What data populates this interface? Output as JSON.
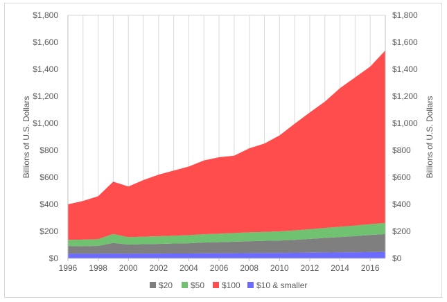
{
  "chart_data": {
    "type": "area",
    "stacked": true,
    "title": "",
    "ylabel_left": "Billions of U.S. Dollars",
    "ylabel_right": "Billions of U.S. Dollars",
    "ylim": [
      0,
      1800
    ],
    "y_ticks": [
      0,
      200,
      400,
      600,
      800,
      1000,
      1200,
      1400,
      1600,
      1800
    ],
    "y_tick_labels": [
      "$0",
      "$200",
      "$400",
      "$600",
      "$800",
      "$1,000",
      "$1,200",
      "$1,400",
      "$1,600",
      "$1,800"
    ],
    "xlim": [
      1996,
      2017
    ],
    "x_ticks": [
      1996,
      1998,
      2000,
      2002,
      2004,
      2006,
      2008,
      2010,
      2012,
      2014,
      2016
    ],
    "x_tick_labels": [
      "1996",
      "1998",
      "2000",
      "2002",
      "2004",
      "2006",
      "2008",
      "2010",
      "2012",
      "2014",
      "2016"
    ],
    "grid": "vertical",
    "legend_position": "bottom",
    "x": [
      1996,
      1997,
      1998,
      1999,
      2000,
      2001,
      2002,
      2003,
      2004,
      2005,
      2006,
      2007,
      2008,
      2009,
      2010,
      2011,
      2012,
      2013,
      2014,
      2015,
      2016,
      2017
    ],
    "series": [
      {
        "name": "$10 & smaller",
        "color": "#6b6bff",
        "values": [
          34,
          34,
          34,
          35,
          34,
          35,
          35,
          36,
          36,
          37,
          38,
          38,
          39,
          40,
          40,
          41,
          42,
          43,
          44,
          45,
          47,
          48
        ]
      },
      {
        "name": "$20",
        "color": "#7f7f7f",
        "values": [
          56,
          57,
          58,
          80,
          68,
          70,
          72,
          74,
          76,
          80,
          82,
          85,
          88,
          90,
          92,
          96,
          102,
          108,
          114,
          120,
          126,
          132
        ]
      },
      {
        "name": "$50",
        "color": "#70c170",
        "values": [
          47,
          48,
          50,
          65,
          55,
          56,
          57,
          58,
          60,
          62,
          63,
          65,
          66,
          66,
          68,
          70,
          72,
          74,
          76,
          78,
          80,
          82
        ]
      },
      {
        "name": "$100",
        "color": "#ff4d4d",
        "values": [
          263,
          286,
          318,
          388,
          375,
          419,
          456,
          482,
          508,
          546,
          566,
          572,
          622,
          654,
          710,
          790,
          864,
          935,
          1026,
          1097,
          1167,
          1278
        ]
      }
    ],
    "legend_order": [
      "$20",
      "$50",
      "$100",
      "$10 & smaller"
    ]
  }
}
